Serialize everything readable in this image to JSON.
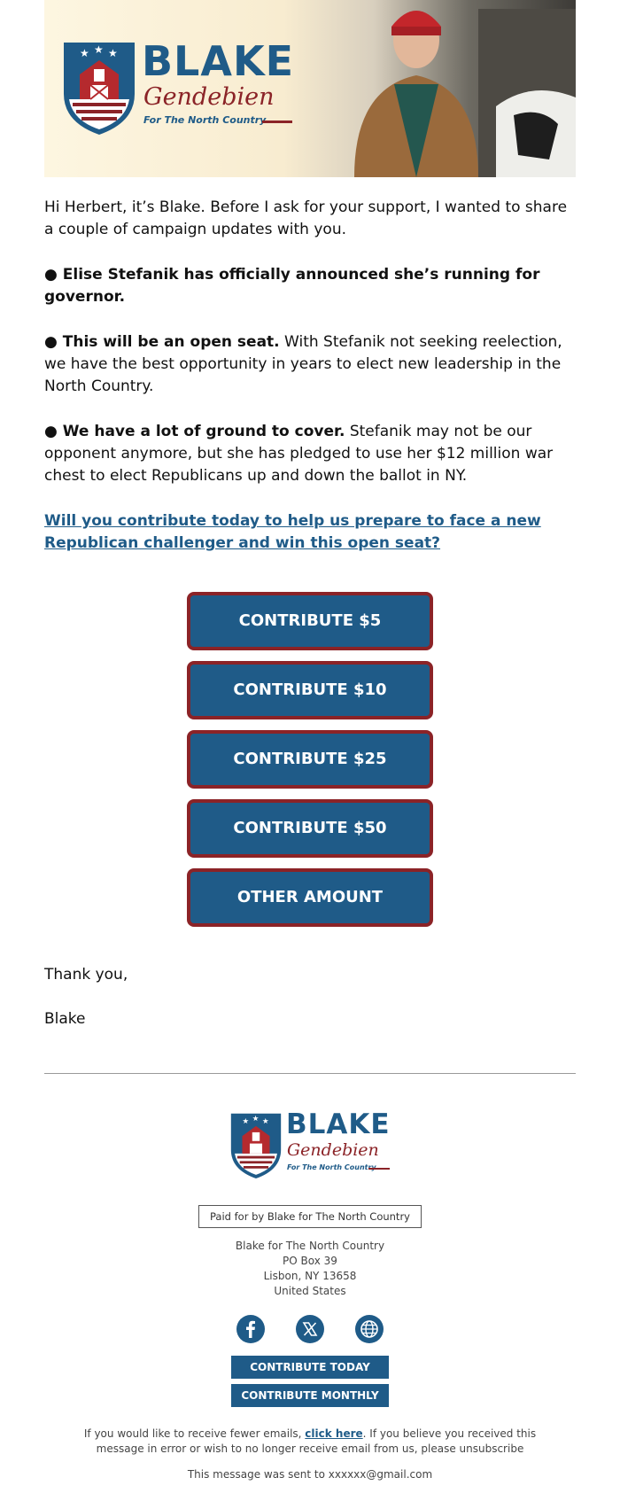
{
  "header": {
    "logo": {
      "word1": "BLAKE",
      "word2": "Gendebien",
      "tagline": "For The North Country"
    },
    "photo_alt": "candidate-photo"
  },
  "body": {
    "greeting": "Hi Herbert, it’s Blake. Before I ask for your support, I wanted to share a couple of campaign updates with you.",
    "bullet1_bold": "● Elise Stefanik has officially announced she’s running for governor.",
    "bullet2_bold": "● This will be an open seat.",
    "bullet2_rest": " With Stefanik not seeking reelection, we have the best opportunity in years to elect new leadership in the North Country.",
    "bullet3_bold": "● We have a lot of ground to cover.",
    "bullet3_rest": " Stefanik may not be our opponent anymore, but she has pledged to use her $12 million war chest to elect Republicans up and down the ballot in NY.",
    "cta_link": "Will you contribute today to help us prepare to face a new Republican challenger and win this open seat?"
  },
  "donate_buttons": [
    {
      "label": "CONTRIBUTE $5"
    },
    {
      "label": "CONTRIBUTE $10"
    },
    {
      "label": "CONTRIBUTE $25"
    },
    {
      "label": "CONTRIBUTE $50"
    },
    {
      "label": "OTHER AMOUNT"
    }
  ],
  "signoff": {
    "thanks": "Thank you,",
    "name": "Blake"
  },
  "footer": {
    "paid_for": "Paid for by Blake for The North Country",
    "address": [
      "Blake for The North Country",
      "PO Box 39",
      "Lisbon, NY 13658",
      "United States"
    ],
    "social_icons": [
      "facebook-icon",
      "x-twitter-icon",
      "globe-icon"
    ],
    "contribute_today": "CONTRIBUTE TODAY",
    "contribute_monthly": "CONTRIBUTE MONTHLY",
    "fewer_pre": "If you would like to receive fewer emails, ",
    "fewer_link": "click here",
    "fewer_post": ". If you believe you received this message in error or wish to no longer receive email from us, please unsubscribe",
    "sent_to": "This message was sent to xxxxxx@gmail.com"
  },
  "colors": {
    "brand_blue": "#1f5b88",
    "brand_red": "#8b2327"
  }
}
